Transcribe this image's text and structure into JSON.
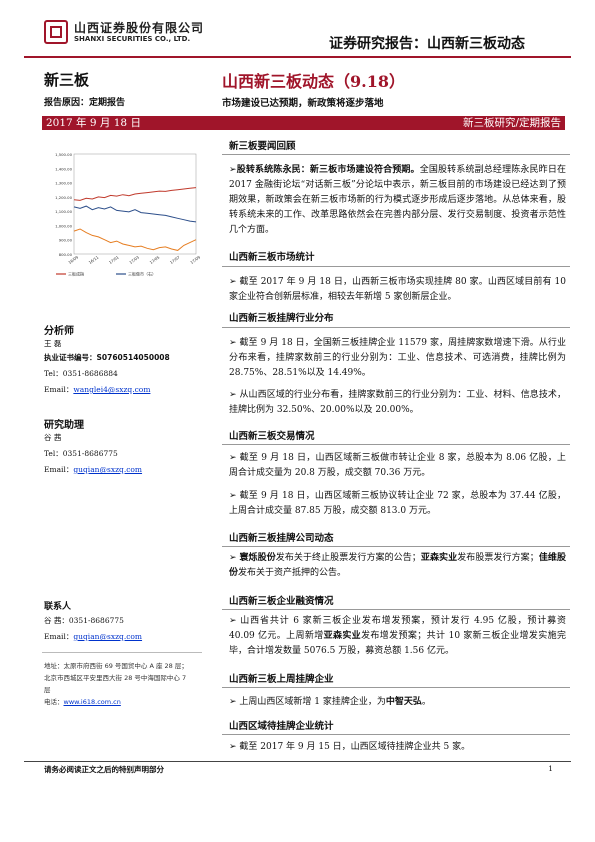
{
  "header": {
    "company_cn": "山西证券股份有限公司",
    "company_en": "SHANXI SECURITIES CO., LTD.",
    "doc_type": "证券研究报告：山西新三板动态",
    "brand_color": "#a0152a"
  },
  "sidebar": {
    "title": "新三板",
    "report_reason": "报告原因：定期报告",
    "analyst_heading": "分析师",
    "analyst_name": "王 磊",
    "cert_label": "执业证书编号：",
    "cert_no": "S0760514050008",
    "analyst_tel": "Tel：0351-8686884",
    "analyst_email_label": "Email：",
    "analyst_email": "wanglei4@sxzq.com",
    "assistant_heading": "研究助理",
    "assistant_name": "谷 茜",
    "assistant_tel": "Tel：0351-8686775",
    "assistant_email_label": "Email：",
    "assistant_email": "guqian@sxzq.com",
    "contact_heading": "联系人",
    "contact_name": "谷 茜：0351-8686775",
    "contact_email_label": "Email：",
    "contact_email": "guqian@sxzq.com",
    "address1": "地址：太原市府西街 69 号国贸中心 A 座 28 层；",
    "address2": "北京市西城区平安里西大街 28 号中海国际中心 7",
    "address3": "层",
    "website_label": "电话：",
    "website": "www.i618.com.cn"
  },
  "main": {
    "title": "山西新三板动态（9.18）",
    "subtitle": "市场建设已达预期，新政策将逐步落地",
    "date": "2017 年 9 月 18 日",
    "category": "新三板研究/定期报告",
    "sec1_title": "新三板要闻回顾",
    "sec1_lead": "股转系统陈永民：新三板市场建设符合预期。",
    "sec1_body": "全国股转系统副总经理陈永民昨日在 2017 金融街论坛“对话新三板”分论坛中表示，新三板目前的市场建设已经达到了预期效果，新政策会在新三板市场新的行为模式逐步形成后逐步落地。从总体来看，股转系统未来的工作、改革思路依然会在完善内部分层、发行交易制度、投资者示范性几个方面。",
    "sec2_title": "山西新三板市场统计",
    "sec2_body": "截至 2017 年 9 月 18 日，山西新三板市场实现挂牌 80 家。山西区域目前有 10 家企业符合创新层标准，相较去年新增 5 家创新层企业。",
    "sec3_title": "山西新三板挂牌行业分布",
    "sec3_p1": "截至 9 月 18 日，全国新三板挂牌企业 11579 家，周挂牌家数增速下滑。从行业分布来看，挂牌家数前三的行业分别为：工业、信息技术、可选消费，挂牌比例为 28.75%、28.51%以及 14.49%。",
    "sec3_p2": "从山西区域的行业分布看，挂牌家数前三的行业分别为：工业、材料、信息技术，挂牌比例为 32.50%、20.00%以及 20.00%。",
    "sec4_title": "山西新三板交易情况",
    "sec4_p1": "截至 9 月 18 日，山西区域新三板做市转让企业 8 家，总股本为 8.06 亿股，上周合计成交量为 20.8 万股，成交额 70.36 万元。",
    "sec4_p2": "截至 9 月 18 日，山西区域新三板协议转让企业 72 家，总股本为 37.44 亿股，上周合计成交量 87.85 万股，成交额 813.0 万元。",
    "sec5_title": "山西新三板挂牌公司动态",
    "sec5_c1": "寰烁股份",
    "sec5_t1": "发布关于终止股票发行方案的公告；",
    "sec5_c2": "亚森实业",
    "sec5_t2": "发布股票发行方案；",
    "sec5_c3": "佳维股份",
    "sec5_t3": "发布关于资产抵押的公告。",
    "sec6_title": "山西新三板企业融资情况",
    "sec6_p1": "山西省共计 6 家新三板企业发布增发预案，预计发行 4.95 亿股，预计募资 40.09 亿元。上周新增",
    "sec6_c": "亚森实业",
    "sec6_p2": "发布增发预案；共计 10 家新三板企业增发实施完毕，合计增发数量 5076.5 万股，募资总额 1.56 亿元。",
    "sec7_title": "山西新三板上周挂牌企业",
    "sec7_p1": "上周山西区域新增 1 家挂牌企业，为",
    "sec7_c": "中智天弘",
    "sec7_p2": "。",
    "sec8_title": "山西区域待挂牌企业统计",
    "sec8_body": "截至 2017 年 9 月 15 日，山西区域待挂牌企业共 5 家。"
  },
  "footer": {
    "note": "请务必阅读正文之后的特别声明部分",
    "page": "1"
  },
  "chart_data": {
    "type": "line",
    "yticks": [
      "1,500.00",
      "1,400.00",
      "1,300.00",
      "1,200.00",
      "1,100.00",
      "1,000.00",
      "900.00",
      "800.00"
    ],
    "xticks": [
      "16/09",
      "16/11",
      "17/01",
      "17/03",
      "17/05",
      "17/07",
      "17/09"
    ],
    "series": [
      {
        "name": "三板成指",
        "color": "#c0392b",
        "values": [
          1180,
          1175,
          1190,
          1185,
          1200,
          1195,
          1210,
          1205,
          1215,
          1208,
          1220,
          1225,
          1230,
          1235,
          1240,
          1238,
          1245,
          1250,
          1255,
          1260,
          1265
        ]
      },
      {
        "name": "三板做市（右）",
        "color": "#2c4e8a",
        "values": [
          1130,
          1120,
          1135,
          1110,
          1125,
          1115,
          1130,
          1105,
          1100,
          1095,
          1110,
          1090,
          1085,
          1080,
          1075,
          1070,
          1060,
          1050,
          1040,
          1030,
          1025
        ]
      },
      {
        "name": "",
        "color": "#e67e22",
        "values": [
          960,
          975,
          950,
          930,
          920,
          900,
          880,
          890,
          870,
          860,
          850,
          855,
          840,
          830,
          845,
          850,
          835,
          825,
          860,
          880,
          900
        ]
      }
    ]
  }
}
